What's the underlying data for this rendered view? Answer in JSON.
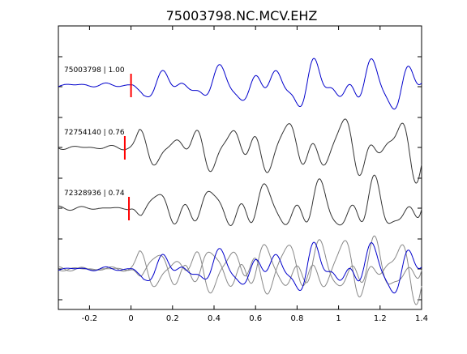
{
  "chart_data": {
    "type": "line",
    "title": "75003798.NC.MCV.EHZ",
    "xlabel": "",
    "ylabel": "",
    "xlim": [
      -0.35,
      1.4
    ],
    "xticks": [
      -0.2,
      0,
      0.2,
      0.4,
      0.6,
      0.8,
      1,
      1.2,
      1.4
    ],
    "xtick_labels": [
      "-0.2",
      "0",
      "0.2",
      "0.4",
      "0.6",
      "0.8",
      "1",
      "1.2",
      "1.4"
    ],
    "grid": false,
    "legend": "none",
    "series": [
      {
        "label": "75003798 | 1.00",
        "color": "#0000cc",
        "pick_time": 0.0,
        "onset": 0.0,
        "seed": 3,
        "amplitude": 0.9
      },
      {
        "label": "72754140 | 0.76",
        "color": "#333333",
        "pick_time": -0.03,
        "onset": -0.02,
        "seed": 7,
        "amplitude": 1.0
      },
      {
        "label": "72328936 | 0.74",
        "color": "#333333",
        "pick_time": -0.01,
        "onset": -0.01,
        "seed": 11,
        "amplitude": 0.95
      }
    ],
    "pick_color": "#ff0000",
    "overlay_colors": [
      "#888888",
      "#888888",
      "#0000cc"
    ]
  }
}
